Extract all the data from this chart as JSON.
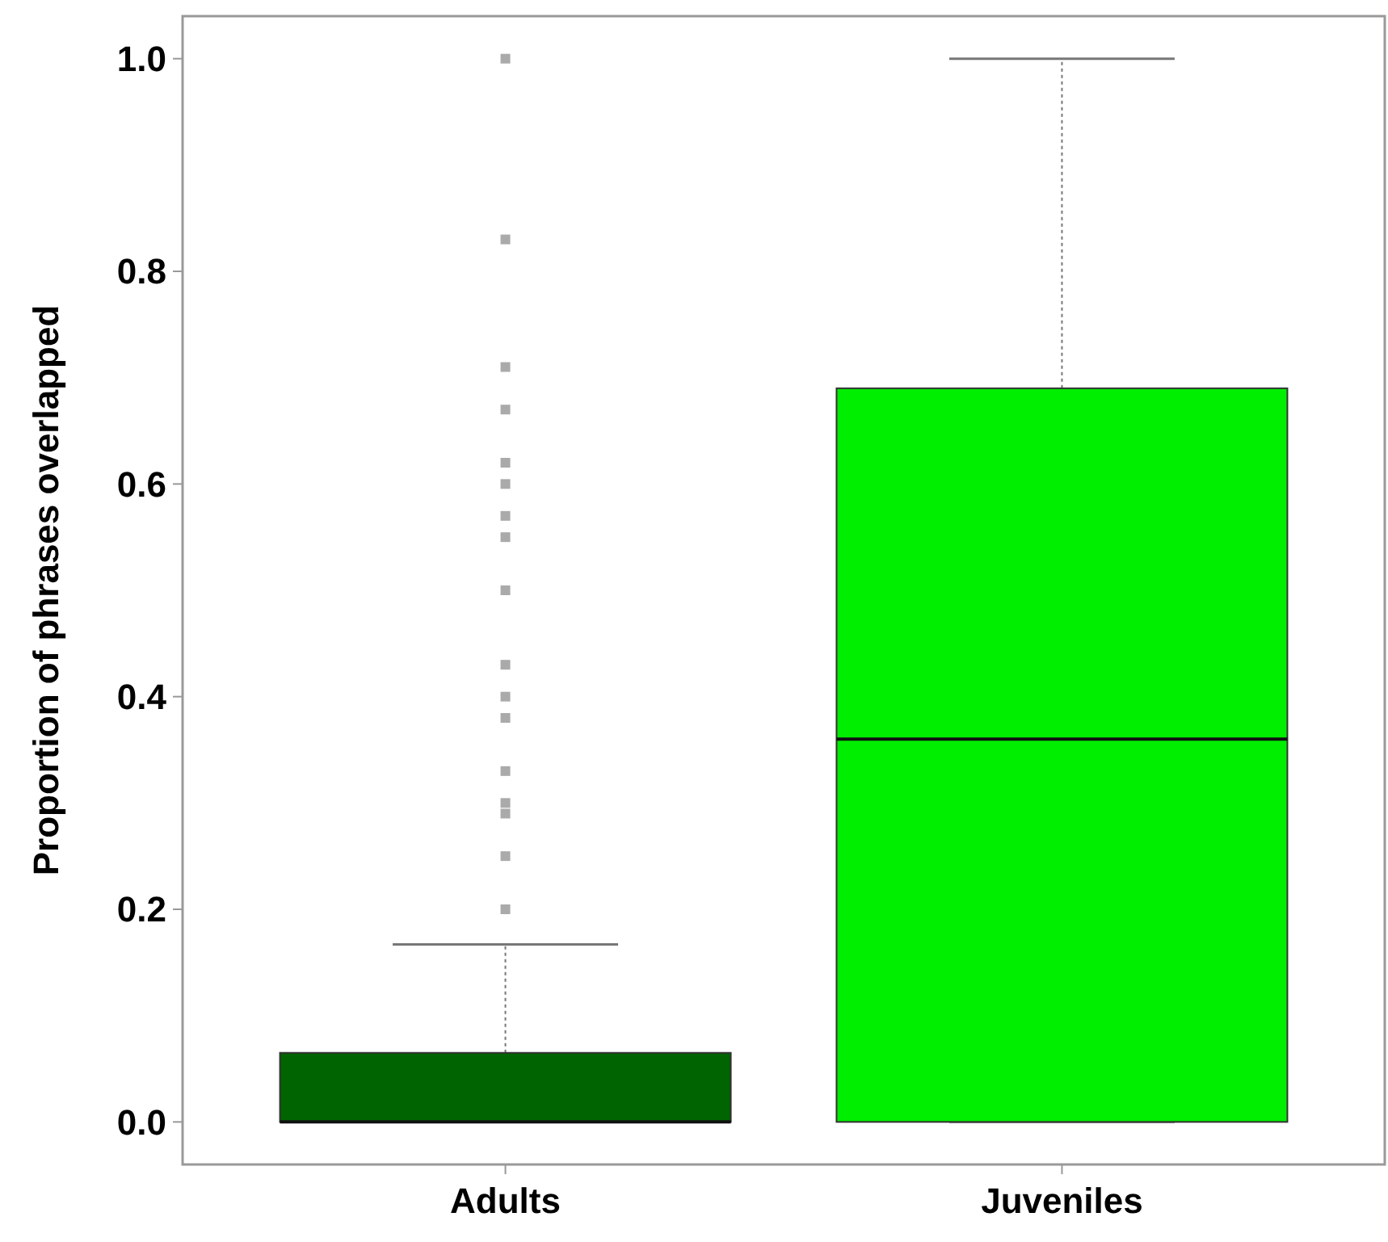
{
  "chart_data": {
    "type": "box",
    "categories": [
      "Adults",
      "Juveniles"
    ],
    "colors": [
      "#006400",
      "#00ee00"
    ],
    "boxes": [
      {
        "low": 0,
        "q1": 0,
        "median": 0,
        "q3": 0.065,
        "high": 0.167,
        "outliers": [
          1.0,
          0.83,
          0.71,
          0.67,
          0.62,
          0.6,
          0.57,
          0.55,
          0.5,
          0.43,
          0.4,
          0.38,
          0.33,
          0.3,
          0.29,
          0.25,
          0.2
        ]
      },
      {
        "low": 0,
        "q1": 0,
        "median": 0.36,
        "q3": 0.69,
        "high": 1.0
      }
    ],
    "ylabel": "Proportion of phrases overlapped",
    "ylim": [
      -0.04,
      1.04
    ],
    "yticks": [
      {
        "value": 0,
        "label": "0.0"
      },
      0.2,
      0.4,
      0.6,
      0.8,
      {
        "value": 1,
        "label": "1.0"
      }
    ],
    "grid": false
  }
}
